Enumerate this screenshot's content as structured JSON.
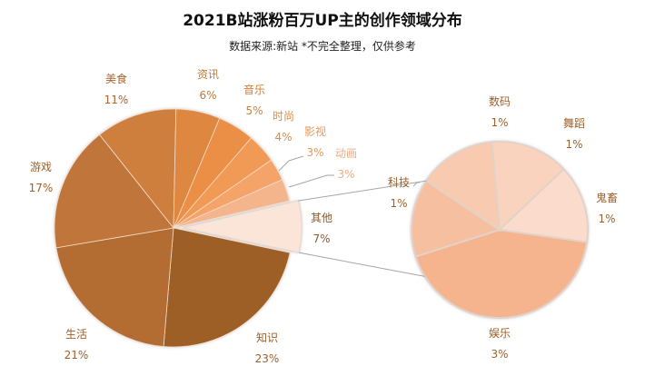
{
  "chart_data": {
    "type": "pie-of-pie",
    "title": "2021B站涨粉百万UP主的创作领域分布",
    "subtitle": "数据来源:新站 *不完全整理，仅供参考",
    "primary": {
      "slices": [
        {
          "label": "其他",
          "value": 7,
          "pct": "7%",
          "color": "#fbe4d8",
          "label_color": "#8a5a2b"
        },
        {
          "label": "知识",
          "value": 23,
          "pct": "23%",
          "color": "#9e5f28",
          "label_color": "#9e5f28"
        },
        {
          "label": "生活",
          "value": 21,
          "pct": "21%",
          "color": "#b36d33",
          "label_color": "#9e5f28"
        },
        {
          "label": "游戏",
          "value": 17,
          "pct": "17%",
          "color": "#c0763a",
          "label_color": "#9e5f28"
        },
        {
          "label": "美食",
          "value": 11,
          "pct": "11%",
          "color": "#cf7f3c",
          "label_color": "#a8652e"
        },
        {
          "label": "资讯",
          "value": 6,
          "pct": "6%",
          "color": "#de8740",
          "label_color": "#c07a3c"
        },
        {
          "label": "音乐",
          "value": 5,
          "pct": "5%",
          "color": "#ea8f45",
          "label_color": "#d08040"
        },
        {
          "label": "时尚",
          "value": 4,
          "pct": "4%",
          "color": "#f09a55",
          "label_color": "#de8c4c"
        },
        {
          "label": "影视",
          "value": 3,
          "pct": "3%",
          "color": "#f4a468",
          "label_color": "#e8995e"
        },
        {
          "label": "动画",
          "value": 3,
          "pct": "3%",
          "color": "#f5b58c",
          "label_color": "#efac82"
        }
      ]
    },
    "secondary": {
      "parent": "其他",
      "slices": [
        {
          "label": "娱乐",
          "value": 3,
          "pct": "3%",
          "color": "#f5b48d",
          "label_color": "#9e5f28"
        },
        {
          "label": "科技",
          "value": 1,
          "pct": "1%",
          "color": "#f6c0a0",
          "label_color": "#9e5f28"
        },
        {
          "label": "数码",
          "value": 1,
          "pct": "1%",
          "color": "#f8cab0",
          "label_color": "#9e5f28"
        },
        {
          "label": "舞蹈",
          "value": 1,
          "pct": "1%",
          "color": "#f9d3be",
          "label_color": "#9e5f28"
        },
        {
          "label": "鬼畜",
          "value": 1,
          "pct": "1%",
          "color": "#fbdccc",
          "label_color": "#9e5f28"
        }
      ]
    }
  }
}
